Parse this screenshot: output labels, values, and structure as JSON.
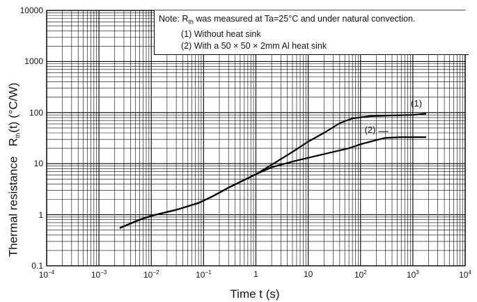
{
  "chart_data": {
    "type": "line",
    "xscale": "log",
    "yscale": "log",
    "xlim": [
      0.0001,
      10000
    ],
    "ylim": [
      0.1,
      10000
    ],
    "x_ticks": [
      "10−4",
      "10−3",
      "10−2",
      "10−1",
      "1",
      "10",
      "102",
      "103",
      "104"
    ],
    "y_ticks": [
      "0.1",
      "1",
      "10",
      "100",
      "1000",
      "10000"
    ],
    "xlabel": "Time   t   (s)",
    "ylabel_main": "Thermal resistance",
    "ylabel_sym": "R",
    "ylabel_sub": "th",
    "ylabel_tail": "(t)   (°C/W)",
    "grid": true,
    "series": [
      {
        "name": "(1)",
        "points": [
          [
            0.0025,
            0.55
          ],
          [
            0.006,
            0.8
          ],
          [
            0.01,
            0.95
          ],
          [
            0.03,
            1.25
          ],
          [
            0.08,
            1.7
          ],
          [
            0.15,
            2.3
          ],
          [
            0.3,
            3.4
          ],
          [
            0.6,
            4.8
          ],
          [
            1,
            6.2
          ],
          [
            2,
            9.5
          ],
          [
            5,
            17
          ],
          [
            10,
            27
          ],
          [
            20,
            40
          ],
          [
            40,
            62
          ],
          [
            70,
            77
          ],
          [
            150,
            85
          ],
          [
            400,
            88
          ],
          [
            1000,
            90
          ],
          [
            1800,
            95
          ]
        ]
      },
      {
        "name": "(2)",
        "points": [
          [
            0.0025,
            0.55
          ],
          [
            0.006,
            0.8
          ],
          [
            0.01,
            0.95
          ],
          [
            0.03,
            1.25
          ],
          [
            0.08,
            1.7
          ],
          [
            0.15,
            2.3
          ],
          [
            0.3,
            3.4
          ],
          [
            0.6,
            4.8
          ],
          [
            1,
            6.2
          ],
          [
            2,
            8.5
          ],
          [
            5,
            11
          ],
          [
            10,
            13
          ],
          [
            30,
            17
          ],
          [
            60,
            20
          ],
          [
            100,
            24
          ],
          [
            200,
            29
          ],
          [
            300,
            32
          ],
          [
            600,
            33
          ],
          [
            1800,
            33
          ]
        ]
      }
    ],
    "note": {
      "prefix": "Note: R",
      "sub": "th",
      "rest": " was measured at Ta=25°C and under natural convection.",
      "line1": "(1) Without heat sink",
      "line2": "(2) With a 50 × 50 × 2mm Al heat sink"
    }
  }
}
